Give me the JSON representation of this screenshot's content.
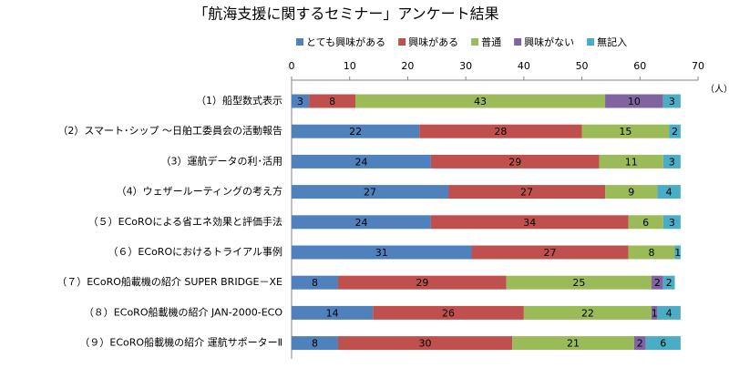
{
  "chart_data": {
    "type": "stacked-bar-horizontal",
    "title": "「航海支援に関するセミナー」アンケート結果",
    "x_unit": "（人）",
    "categories": [
      "（1）船型数式表示",
      "（2）スマート･シップ ～日舶工委員会の活動報告",
      "（3）運航データの利･活用",
      "（4）ウェザールーティングの考え方",
      "（５）ECoROによる省エネ効果と評価手法",
      "（６）ECoROにおけるトライアル事例",
      "（７）ECoRO船載機の紹介 SUPER BRIDGE－XE",
      "（８）ECoRO船載機の紹介 JAN-2000-ECO",
      "（９）ECoRO船載機の紹介 運航サポーターⅡ"
    ],
    "series": [
      {
        "name": "とても興味がある",
        "color": "#4f81bd",
        "values": [
          3,
          22,
          24,
          27,
          24,
          31,
          8,
          14,
          8
        ]
      },
      {
        "name": "興味がある",
        "color": "#c0504d",
        "values": [
          8,
          28,
          29,
          27,
          34,
          27,
          29,
          26,
          30
        ]
      },
      {
        "name": "普通",
        "color": "#9bbb59",
        "values": [
          43,
          15,
          11,
          9,
          6,
          8,
          25,
          22,
          21
        ]
      },
      {
        "name": "興味がない",
        "color": "#8064a2",
        "values": [
          10,
          null,
          null,
          null,
          null,
          null,
          2,
          1,
          2
        ]
      },
      {
        "name": "無記入",
        "color": "#4bacc6",
        "values": [
          3,
          2,
          3,
          4,
          3,
          1,
          2,
          4,
          6
        ]
      }
    ],
    "xlim": [
      0,
      70
    ],
    "xticks": [
      0,
      10,
      20,
      30,
      40,
      50,
      60,
      70
    ],
    "grid": false
  }
}
